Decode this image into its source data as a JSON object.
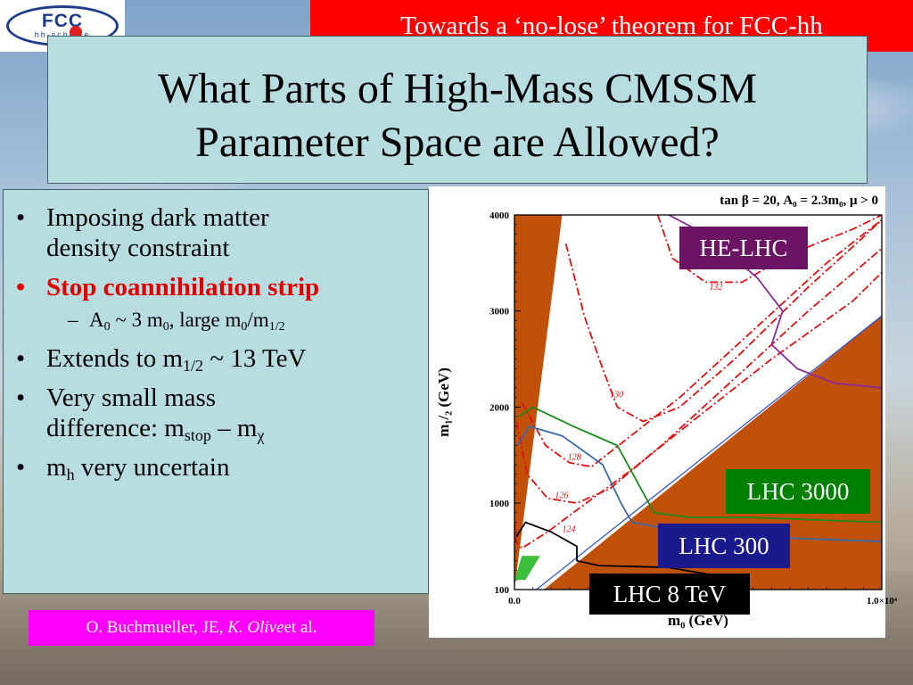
{
  "logo": {
    "text": "FCC",
    "sub": "hh-scheme"
  },
  "banner": {
    "text": "Towards a ‘no-lose’ theorem for FCC-hh"
  },
  "title": {
    "line1": "What Parts of High-Mass CMSSM",
    "line2": "Parameter Space are Allowed?"
  },
  "bullets": {
    "b1_line1": "Imposing dark matter",
    "b1_line2": "density constraint",
    "b2": "Stop coannihilation strip",
    "sub1_a": "A",
    "sub1_a_sub": "0",
    "sub1_b": " ~ 3 m",
    "sub1_b_sub": "0",
    "sub1_c": ", large m",
    "sub1_c_sub": "0",
    "sub1_d": "/m",
    "sub1_d_sub": "1/2",
    "b3_a": "Extends to m",
    "b3_sub": "1/2",
    "b3_b": " ~ 13 TeV",
    "b4_line1": "Very small mass",
    "b4_line2_a": "difference: m",
    "b4_line2_sub1": "stop",
    "b4_line2_b": " – m",
    "b4_line2_sub2": "χ",
    "b5_a": "m",
    "b5_sub": "h",
    "b5_b": " very uncertain"
  },
  "citation": {
    "prefix": "O. Buchmueller, JE, ",
    "italic": "K. Olive",
    "suffix": " et al."
  },
  "labels": {
    "he_lhc": "HE-LHC",
    "lhc3000": "LHC 3000",
    "lhc300": "LHC 300",
    "lhc8": "LHC 8 TeV"
  },
  "colors": {
    "excluded": "#c0500a",
    "dm_strip": "#2a4fd0",
    "higgs_contour": "#e01010",
    "he_lhc": "#8a2a9a",
    "lhc3000": "#1a8a1a",
    "lhc300": "#3a6aa8",
    "lhc8": "#000000",
    "green_region": "#3cc03c"
  },
  "chart_data": {
    "type": "line",
    "title": "tan β = 20, A₀ = 2.3m₀,  μ > 0",
    "xlabel": "m₀ (GeV)",
    "ylabel": "m₁/₂ (GeV)",
    "xlim": [
      0,
      10000
    ],
    "ylim": [
      100,
      4000
    ],
    "x_ticks": [
      {
        "value": 0,
        "label": "0.0"
      },
      {
        "value": 10000,
        "label": "1.0×10⁴"
      }
    ],
    "y_ticks": [
      {
        "value": 100,
        "label": "100"
      },
      {
        "value": 1000,
        "label": "1000"
      },
      {
        "value": 2000,
        "label": "2000"
      },
      {
        "value": 3000,
        "label": "3000"
      },
      {
        "value": 4000,
        "label": "4000"
      }
    ],
    "regions": [
      {
        "color": "#c0500a",
        "points": [
          [
            0,
            100
          ],
          [
            0,
            4000
          ],
          [
            1300,
            4000
          ]
        ]
      },
      {
        "color": "#c0500a",
        "points": [
          [
            800,
            100
          ],
          [
            10000,
            100
          ],
          [
            10000,
            2950
          ]
        ]
      },
      {
        "color": "#3cc03c",
        "points": [
          [
            0,
            200
          ],
          [
            200,
            450
          ],
          [
            700,
            450
          ],
          [
            300,
            200
          ]
        ]
      }
    ],
    "curves": [
      {
        "color": "#2a4fd0",
        "style": "solid",
        "width": 1.2,
        "points": [
          [
            600,
            100
          ],
          [
            10000,
            2950
          ]
        ]
      },
      {
        "color": "#e01010",
        "style": "dashed",
        "width": 1.8,
        "label": "124",
        "label_at": [
          1300,
          700
        ],
        "points": [
          [
            5,
            800
          ],
          [
            50,
            600
          ],
          [
            200,
            530
          ],
          [
            900,
            700
          ],
          [
            1600,
            900
          ],
          [
            3200,
            1350
          ],
          [
            5000,
            1900
          ],
          [
            7000,
            2500
          ],
          [
            9200,
            3100
          ],
          [
            10000,
            3400
          ]
        ]
      },
      {
        "color": "#e01010",
        "style": "dashed",
        "width": 1.8,
        "label": "126",
        "label_at": [
          1100,
          1050
        ],
        "points": [
          [
            50,
            1850
          ],
          [
            350,
            1300
          ],
          [
            900,
            1050
          ],
          [
            1700,
            1000
          ],
          [
            2600,
            1150
          ],
          [
            4000,
            1600
          ],
          [
            6000,
            2300
          ],
          [
            8000,
            3000
          ],
          [
            10000,
            3650
          ]
        ]
      },
      {
        "color": "#e01010",
        "style": "dashed",
        "width": 1.8,
        "label": "128",
        "label_at": [
          1450,
          1450
        ],
        "points": [
          [
            200,
            2050
          ],
          [
            850,
            1600
          ],
          [
            1500,
            1420
          ],
          [
            2100,
            1380
          ],
          [
            3000,
            1650
          ],
          [
            4500,
            2100
          ],
          [
            6500,
            2800
          ],
          [
            8500,
            3500
          ],
          [
            10000,
            3950
          ]
        ]
      },
      {
        "color": "#e01010",
        "style": "dashed",
        "width": 1.8,
        "label": "130",
        "label_at": [
          2600,
          2100
        ],
        "points": [
          [
            1400,
            3700
          ],
          [
            1900,
            2950
          ],
          [
            2400,
            2400
          ],
          [
            2800,
            2000
          ],
          [
            3500,
            1850
          ],
          [
            4500,
            2000
          ],
          [
            6000,
            2500
          ],
          [
            8000,
            3250
          ],
          [
            9300,
            3700
          ],
          [
            10000,
            3950
          ]
        ]
      },
      {
        "color": "#e01010",
        "style": "dashed",
        "width": 1.8,
        "label": "132",
        "label_at": [
          5300,
          3220
        ],
        "points": [
          [
            3900,
            4000
          ],
          [
            4300,
            3550
          ],
          [
            5200,
            3300
          ],
          [
            6200,
            3300
          ],
          [
            7300,
            3550
          ],
          [
            8200,
            3700
          ],
          [
            9200,
            3850
          ],
          [
            10000,
            4000
          ]
        ]
      },
      {
        "color": "#8a2a9a",
        "style": "solid",
        "width": 1.8,
        "points": [
          [
            4200,
            4000
          ],
          [
            5200,
            3800
          ],
          [
            6600,
            3350
          ],
          [
            7300,
            3000
          ],
          [
            7000,
            2650
          ],
          [
            7700,
            2400
          ],
          [
            8700,
            2250
          ],
          [
            10000,
            2200
          ]
        ]
      },
      {
        "color": "#1a8a1a",
        "style": "solid",
        "width": 1.8,
        "points": [
          [
            100,
            1900
          ],
          [
            500,
            2000
          ],
          [
            1600,
            1800
          ],
          [
            2800,
            1600
          ],
          [
            3300,
            1250
          ],
          [
            3800,
            900
          ],
          [
            4800,
            850
          ],
          [
            6500,
            850
          ],
          [
            10000,
            800
          ]
        ]
      },
      {
        "color": "#3a6aa8",
        "style": "solid",
        "width": 1.8,
        "points": [
          [
            80,
            1600
          ],
          [
            400,
            1800
          ],
          [
            1300,
            1700
          ],
          [
            2400,
            1400
          ],
          [
            2900,
            1000
          ],
          [
            3200,
            800
          ],
          [
            4600,
            700
          ],
          [
            6500,
            650
          ],
          [
            10000,
            600
          ]
        ]
      },
      {
        "color": "#000000",
        "style": "solid",
        "width": 1.8,
        "points": [
          [
            50,
            650
          ],
          [
            300,
            800
          ],
          [
            1000,
            700
          ],
          [
            1700,
            550
          ],
          [
            1700,
            400
          ],
          [
            2300,
            350
          ],
          [
            4200,
            330
          ],
          [
            5400,
            250
          ]
        ]
      }
    ]
  }
}
